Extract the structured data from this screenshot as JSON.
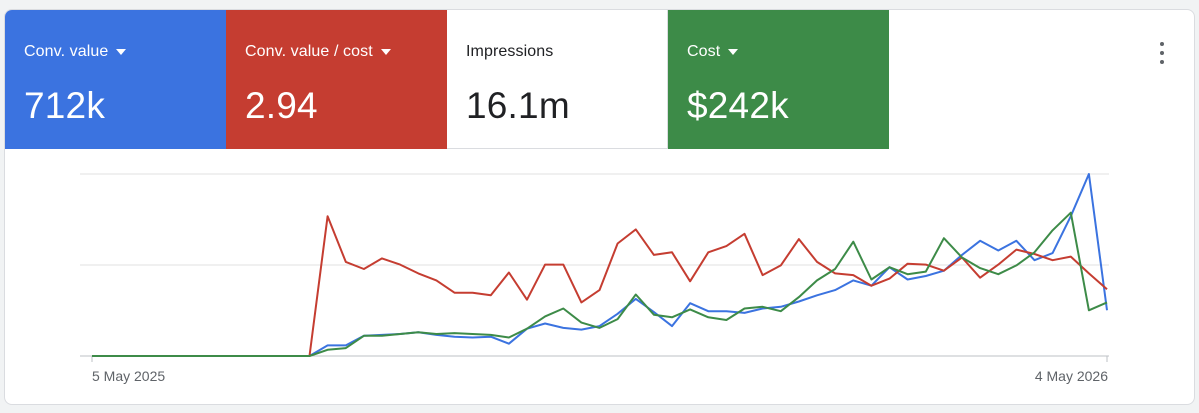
{
  "metrics": [
    {
      "label": "Conv. value",
      "value": "712k",
      "color": "#3b73e0",
      "dropdown": true
    },
    {
      "label": "Conv. value / cost",
      "value": "2.94",
      "color": "#c53d31",
      "dropdown": true
    },
    {
      "label": "Impressions",
      "value": "16.1m",
      "color": "#ffffff",
      "dropdown": false
    },
    {
      "label": "Cost",
      "value": "$242k",
      "color": "#3d8b48",
      "dropdown": true
    }
  ],
  "icons": {
    "more": "more-vert-icon"
  },
  "chart_data": {
    "type": "line",
    "x_start": "5 May 2025",
    "x_end": "4 May 2026",
    "tick_labels": [
      "5 May 2025",
      "4 May 2026"
    ],
    "grid": true,
    "y_axis_labels": false,
    "series": [
      {
        "color": "#3b73e0",
        "values": [
          0,
          0,
          0,
          0,
          0,
          0,
          0,
          0,
          0,
          0,
          0,
          0,
          0,
          12,
          12,
          23,
          24,
          25,
          27,
          24,
          22,
          21,
          22,
          14,
          31,
          37,
          32,
          30,
          34,
          48,
          65,
          50,
          34,
          60,
          51,
          51,
          49,
          54,
          56,
          62,
          69,
          75,
          86,
          80,
          101,
          87,
          91,
          97,
          115,
          131,
          120,
          131,
          109,
          117,
          159,
          207,
          52
        ]
      },
      {
        "color": "#c53d31",
        "values": [
          0,
          0,
          0,
          0,
          0,
          0,
          0,
          0,
          0,
          0,
          0,
          0,
          0,
          159,
          107,
          99,
          111,
          104,
          94,
          86,
          72,
          72,
          69,
          95,
          64,
          104,
          104,
          61,
          75,
          128,
          144,
          115,
          118,
          85,
          118,
          125,
          139,
          92,
          103,
          133,
          107,
          94,
          92,
          80,
          88,
          105,
          104,
          97,
          112,
          89,
          104,
          121,
          116,
          109,
          113,
          94,
          76
        ]
      },
      {
        "color": "#3d8b48",
        "values": [
          0,
          0,
          0,
          0,
          0,
          0,
          0,
          0,
          0,
          0,
          0,
          0,
          0,
          7,
          9,
          23,
          23,
          25,
          27,
          25,
          26,
          25,
          24,
          21,
          31,
          45,
          54,
          38,
          32,
          42,
          70,
          47,
          44,
          53,
          44,
          41,
          54,
          56,
          51,
          67,
          86,
          99,
          130,
          87,
          101,
          93,
          96,
          134,
          112,
          100,
          93,
          103,
          118,
          143,
          163,
          52,
          61
        ]
      }
    ]
  }
}
